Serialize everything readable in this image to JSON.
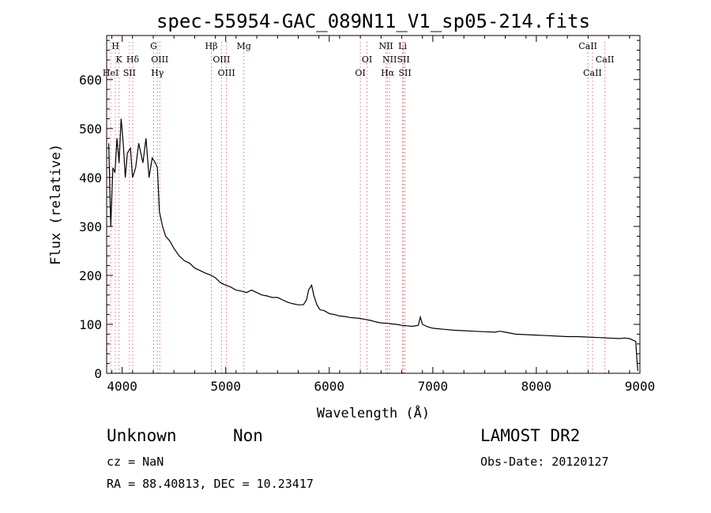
{
  "chart_data": {
    "type": "line",
    "title": "spec-55954-GAC_089N11_V1_sp05-214.fits",
    "xlabel": "Wavelength (Å)",
    "ylabel": "Flux (relative)",
    "xlim": [
      3850,
      9000
    ],
    "ylim": [
      0,
      690
    ],
    "x_ticks": [
      4000,
      5000,
      6000,
      7000,
      8000,
      9000
    ],
    "y_ticks": [
      0,
      100,
      200,
      300,
      400,
      500,
      600
    ],
    "grid": false,
    "series": [
      {
        "x": [
          3870,
          3890,
          3910,
          3930,
          3950,
          3970,
          3990,
          4010,
          4030,
          4050,
          4080,
          4100,
          4130,
          4160,
          4200,
          4230,
          4260,
          4290,
          4320,
          4340,
          4360,
          4390,
          4420,
          4460,
          4500,
          4550,
          4600,
          4650,
          4700,
          4750,
          4800,
          4861,
          4900,
          4950,
          5000,
          5050,
          5100,
          5150,
          5200,
          5250,
          5300,
          5350,
          5400,
          5450,
          5500,
          5550,
          5600,
          5650,
          5700,
          5750,
          5780,
          5800,
          5830,
          5850,
          5880,
          5910,
          5950,
          6000,
          6050,
          6100,
          6150,
          6200,
          6250,
          6300,
          6350,
          6400,
          6450,
          6500,
          6563,
          6600,
          6650,
          6700,
          6750,
          6800,
          6860,
          6880,
          6900,
          6950,
          7000,
          7100,
          7200,
          7300,
          7400,
          7500,
          7600,
          7650,
          7700,
          7800,
          7900,
          8000,
          8100,
          8200,
          8300,
          8400,
          8500,
          8600,
          8700,
          8800,
          8850,
          8900,
          8960,
          8970,
          8980
        ],
        "y": [
          470,
          300,
          420,
          410,
          480,
          430,
          520,
          470,
          400,
          450,
          460,
          400,
          420,
          470,
          430,
          480,
          400,
          440,
          430,
          420,
          330,
          300,
          280,
          270,
          255,
          240,
          230,
          225,
          215,
          210,
          205,
          200,
          195,
          185,
          180,
          176,
          170,
          168,
          165,
          170,
          165,
          160,
          158,
          155,
          155,
          150,
          145,
          142,
          140,
          140,
          150,
          170,
          180,
          160,
          140,
          130,
          128,
          122,
          120,
          117,
          116,
          114,
          113,
          112,
          110,
          108,
          105,
          103,
          102,
          101,
          100,
          98,
          97,
          96,
          98,
          115,
          100,
          95,
          92,
          90,
          88,
          87,
          86,
          85,
          84,
          86,
          84,
          80,
          79,
          78,
          77,
          76,
          75,
          75,
          74,
          73,
          72,
          71,
          72,
          71,
          65,
          30,
          5
        ]
      }
    ],
    "annotations": [
      {
        "label": "H",
        "x": 3934,
        "row": 0
      },
      {
        "label": "K",
        "x": 3969,
        "row": 1
      },
      {
        "label": "HeI",
        "x": 3889,
        "row": 2
      },
      {
        "label": "Hδ",
        "x": 4102,
        "row": 1
      },
      {
        "label": "SII",
        "x": 4070,
        "row": 2
      },
      {
        "label": "G",
        "x": 4304,
        "row": 0
      },
      {
        "label": "OIII",
        "x": 4363,
        "row": 1
      },
      {
        "label": "Hγ",
        "x": 4340,
        "row": 2
      },
      {
        "label": "Hβ",
        "x": 4861,
        "row": 0
      },
      {
        "label": "OIII",
        "x": 4959,
        "row": 1
      },
      {
        "label": "OIII",
        "x": 5007,
        "row": 2
      },
      {
        "label": "Mg",
        "x": 5175,
        "row": 0
      },
      {
        "label": "OI",
        "x": 6364,
        "row": 1
      },
      {
        "label": "OI",
        "x": 6300,
        "row": 2
      },
      {
        "label": "NII",
        "x": 6548,
        "row": 0
      },
      {
        "label": "Li",
        "x": 6708,
        "row": 0
      },
      {
        "label": "NII",
        "x": 6583,
        "row": 1
      },
      {
        "label": "SII",
        "x": 6716,
        "row": 1
      },
      {
        "label": "Hα",
        "x": 6563,
        "row": 2
      },
      {
        "label": "SII",
        "x": 6731,
        "row": 2
      },
      {
        "label": "CaII",
        "x": 8498,
        "row": 0
      },
      {
        "label": "CaII",
        "x": 8662,
        "row": 1
      },
      {
        "label": "CaII",
        "x": 8542,
        "row": 2
      }
    ]
  },
  "info": {
    "object": "Unknown",
    "class": "Non",
    "survey": "LAMOST DR2",
    "cz": "cz = NaN",
    "obs_date": "Obs-Date: 20120127",
    "radec": "RA =  88.40813, DEC =  10.23417"
  }
}
